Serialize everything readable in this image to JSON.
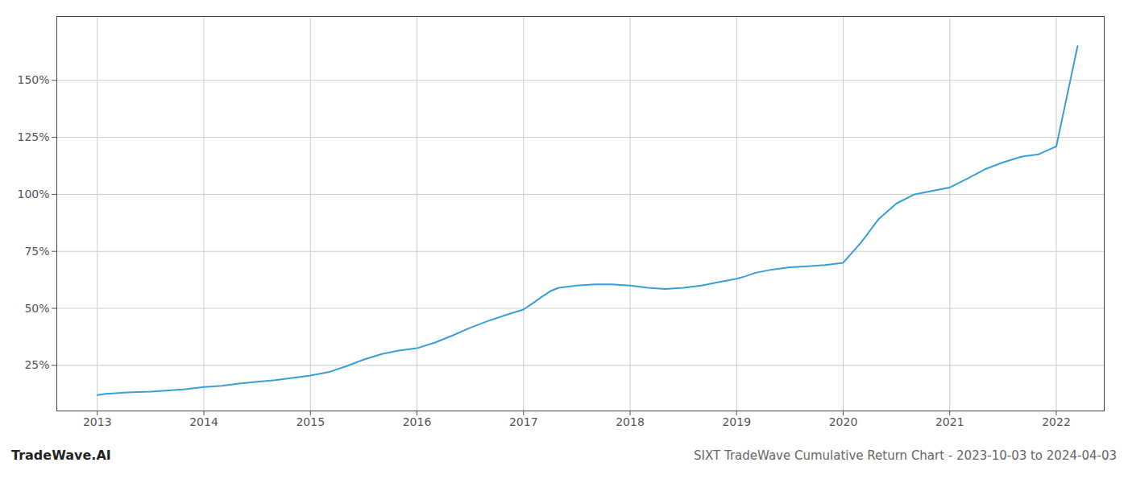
{
  "chart_data": {
    "type": "line",
    "title": "SIXT TradeWave Cumulative Return Chart - 2023-10-03 to 2024-04-03",
    "annotations": [
      "TradeWave.AI"
    ],
    "color": "#3a9fd8",
    "grid": true,
    "x": [
      2013.0,
      2013.08,
      2013.17,
      2013.25,
      2013.33,
      2013.5,
      2013.67,
      2013.83,
      2014.0,
      2014.17,
      2014.33,
      2014.5,
      2014.67,
      2014.83,
      2015.0,
      2015.17,
      2015.33,
      2015.5,
      2015.67,
      2015.83,
      2016.0,
      2016.17,
      2016.33,
      2016.5,
      2016.67,
      2016.83,
      2017.0,
      2017.08,
      2017.17,
      2017.25,
      2017.33,
      2017.5,
      2017.67,
      2017.83,
      2018.0,
      2018.17,
      2018.33,
      2018.5,
      2018.67,
      2018.83,
      2019.0,
      2019.08,
      2019.17,
      2019.33,
      2019.5,
      2019.67,
      2019.83,
      2020.0,
      2020.17,
      2020.33,
      2020.5,
      2020.67,
      2020.83,
      2021.0,
      2021.17,
      2021.33,
      2021.5,
      2021.67,
      2021.83,
      2022.0,
      2022.1,
      2022.2
    ],
    "values": [
      12.0,
      12.5,
      12.8,
      13.0,
      13.2,
      13.5,
      14.0,
      14.5,
      15.5,
      16.0,
      17.0,
      17.8,
      18.5,
      19.5,
      20.5,
      22.0,
      24.5,
      27.5,
      30.0,
      31.5,
      32.5,
      35.0,
      38.0,
      41.5,
      44.5,
      47.0,
      49.5,
      52.0,
      55.0,
      57.5,
      59.0,
      60.0,
      60.5,
      60.5,
      60.0,
      59.0,
      58.5,
      59.0,
      60.0,
      61.5,
      63.0,
      64.0,
      65.5,
      67.0,
      68.0,
      68.5,
      69.0,
      70.0,
      79.0,
      89.0,
      96.0,
      100.0,
      101.5,
      103.0,
      107.0,
      111.0,
      114.0,
      116.5,
      117.5,
      121.0,
      143.0,
      165.0
    ],
    "xlim": [
      2012.62,
      2022.45
    ],
    "ylim": [
      5,
      178
    ],
    "xticks": [
      2013,
      2014,
      2015,
      2016,
      2017,
      2018,
      2019,
      2020,
      2021,
      2022
    ],
    "yticks": [
      {
        "value": 25,
        "label": "25%"
      },
      {
        "value": 50,
        "label": "50%"
      },
      {
        "value": 75,
        "label": "75%"
      },
      {
        "value": 100,
        "label": "100%"
      },
      {
        "value": 125,
        "label": "125%"
      },
      {
        "value": 150,
        "label": "150%"
      }
    ]
  }
}
